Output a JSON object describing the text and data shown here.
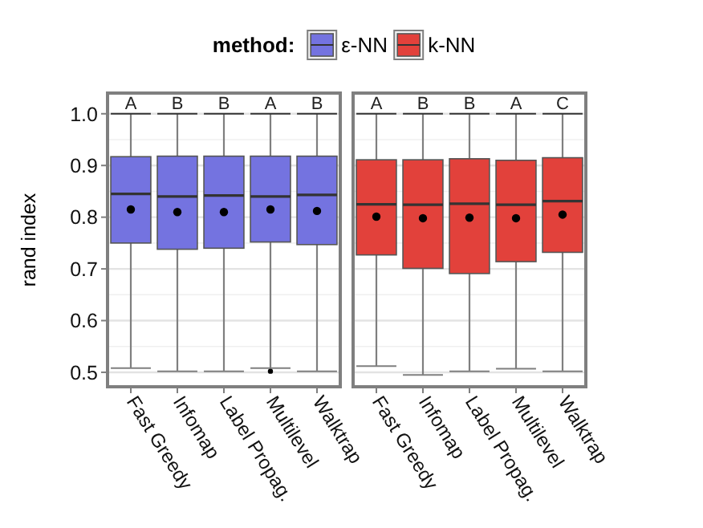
{
  "chart_data": [
    {
      "type": "box",
      "legend_title": "method:",
      "ylabel": "rand index",
      "categories": [
        "Fast Greedy",
        "Infomap",
        "Label Propag.",
        "Multilevel",
        "Walktrap"
      ],
      "ylim": [
        0.472,
        1.04
      ],
      "yticks": [
        0.5,
        0.6,
        0.7,
        0.8,
        0.9,
        {
          "value": 1,
          "label": "1.0"
        }
      ],
      "grid": true,
      "legend": "top",
      "tick_labels": "xy",
      "series": [
        {
          "name": "ε-NN",
          "color": "#7473e0",
          "boxes": [
            {
              "low": 0.508,
              "q1": 0.75,
              "median": 0.845,
              "q3": 0.917,
              "high": 1.0,
              "mean": 0.815
            },
            {
              "low": 0.502,
              "q1": 0.738,
              "median": 0.84,
              "q3": 0.918,
              "high": 1.0,
              "mean": 0.81
            },
            {
              "low": 0.502,
              "q1": 0.74,
              "median": 0.842,
              "q3": 0.918,
              "high": 1.0,
              "mean": 0.81
            },
            {
              "low": 0.508,
              "q1": 0.752,
              "median": 0.84,
              "q3": 0.918,
              "high": 1.0,
              "mean": 0.815,
              "outliers": [
                0.502
              ]
            },
            {
              "low": 0.502,
              "q1": 0.747,
              "median": 0.843,
              "q3": 0.918,
              "high": 1.0,
              "mean": 0.812
            }
          ]
        }
      ],
      "annotations": [
        "A",
        "B",
        "B",
        "A",
        "B"
      ]
    },
    {
      "type": "box",
      "categories": [
        "Fast Greedy",
        "Infomap",
        "Label Propag.",
        "Multilevel",
        "Walktrap"
      ],
      "ylim": [
        0.472,
        1.04
      ],
      "yticks": [
        0.5,
        0.6,
        0.7,
        0.8,
        0.9,
        1.0
      ],
      "grid": true,
      "legend": "top",
      "tick_labels": "x",
      "series": [
        {
          "name": "k-NN",
          "color": "#e2413b",
          "boxes": [
            {
              "low": 0.512,
              "q1": 0.727,
              "median": 0.825,
              "q3": 0.911,
              "high": 1.0,
              "mean": 0.801
            },
            {
              "low": 0.495,
              "q1": 0.701,
              "median": 0.824,
              "q3": 0.911,
              "high": 1.0,
              "mean": 0.798
            },
            {
              "low": 0.502,
              "q1": 0.691,
              "median": 0.826,
              "q3": 0.913,
              "high": 1.0,
              "mean": 0.799
            },
            {
              "low": 0.507,
              "q1": 0.714,
              "median": 0.824,
              "q3": 0.91,
              "high": 1.0,
              "mean": 0.798
            },
            {
              "low": 0.502,
              "q1": 0.732,
              "median": 0.831,
              "q3": 0.915,
              "high": 1.0,
              "mean": 0.805
            }
          ]
        }
      ],
      "annotations": [
        "A",
        "B",
        "B",
        "A",
        "C"
      ]
    }
  ]
}
